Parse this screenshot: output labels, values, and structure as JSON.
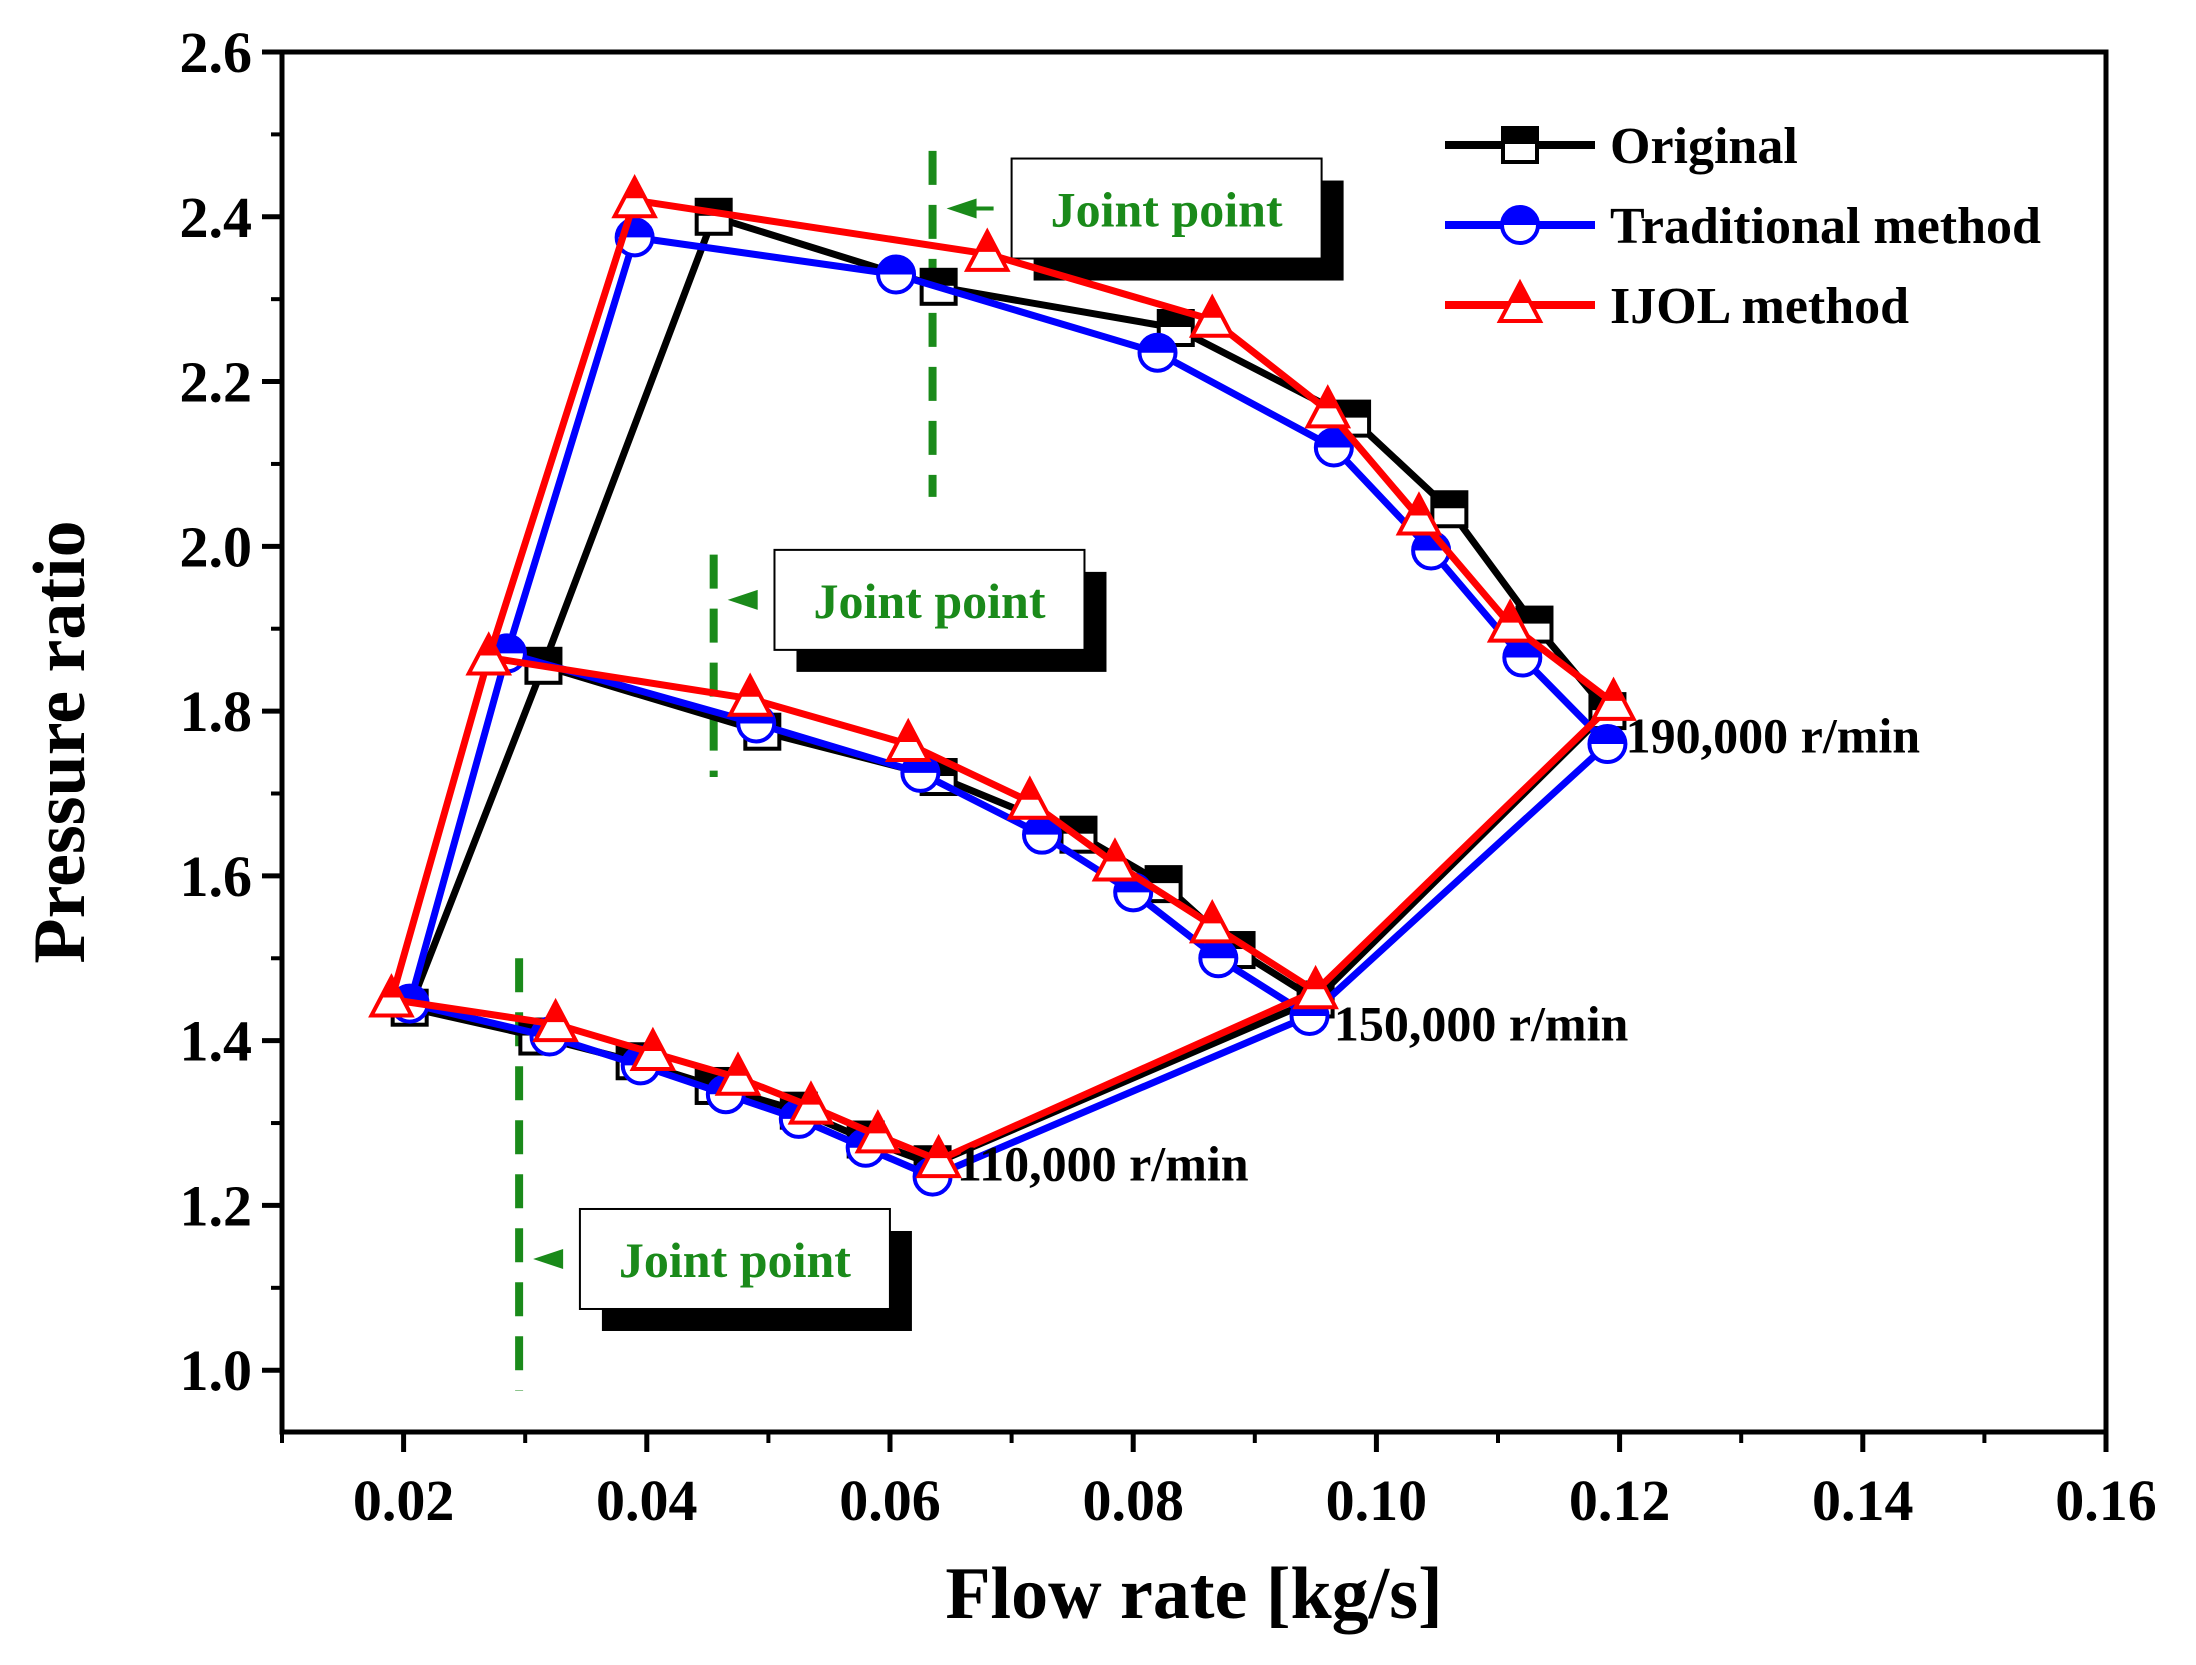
{
  "chart_data": {
    "type": "line",
    "title": "",
    "xlabel": "Flow rate [kg/s]",
    "ylabel": "Pressure ratio",
    "xlim": [
      0.01,
      0.16
    ],
    "ylim": [
      0.925,
      2.6
    ],
    "xticks": [
      0.02,
      0.04,
      0.06,
      0.08,
      0.1,
      0.12,
      0.14,
      0.16
    ],
    "xtick_labels": [
      "0.02",
      "0.04",
      "0.06",
      "0.08",
      "0.10",
      "0.12",
      "0.14",
      "0.16"
    ],
    "yticks": [
      1.0,
      1.2,
      1.4,
      1.6,
      1.8,
      2.0,
      2.2,
      2.4,
      2.6
    ],
    "ytick_labels": [
      "1.0",
      "1.2",
      "1.4",
      "1.6",
      "1.8",
      "2.0",
      "2.2",
      "2.4",
      "2.6"
    ],
    "grid": false,
    "legend_position": "top-right",
    "series": [
      {
        "name": "Original",
        "color": "#000000",
        "marker": "square",
        "points": [
          [
            0.0205,
            1.44
          ],
          [
            0.031,
            1.405
          ],
          [
            0.039,
            1.375
          ],
          [
            0.0455,
            1.345
          ],
          [
            0.0525,
            1.315
          ],
          [
            0.058,
            1.28
          ],
          [
            0.0635,
            1.25
          ],
          [
            0.095,
            1.45
          ],
          [
            0.119,
            1.8
          ],
          [
            0.113,
            1.905
          ],
          [
            0.106,
            2.045
          ],
          [
            0.098,
            2.155
          ],
          [
            0.0835,
            2.265
          ],
          [
            0.064,
            2.315
          ],
          [
            0.0455,
            2.4
          ],
          [
            0.0315,
            1.855
          ],
          [
            0.0205,
            1.44
          ]
        ],
        "extra_points": [
          [
            0.0315,
            1.855
          ],
          [
            0.0495,
            1.775
          ],
          [
            0.064,
            1.72
          ],
          [
            0.0755,
            1.65
          ],
          [
            0.0825,
            1.59
          ],
          [
            0.0885,
            1.51
          ],
          [
            0.095,
            1.45
          ]
        ]
      },
      {
        "name": "Traditional method",
        "color": "#0000ff",
        "marker": "circle",
        "points": [
          [
            0.0205,
            1.445
          ],
          [
            0.032,
            1.405
          ],
          [
            0.0395,
            1.37
          ],
          [
            0.0465,
            1.335
          ],
          [
            0.0525,
            1.305
          ],
          [
            0.058,
            1.27
          ],
          [
            0.0635,
            1.235
          ],
          [
            0.0945,
            1.43
          ],
          [
            0.119,
            1.76
          ],
          [
            0.112,
            1.865
          ],
          [
            0.1045,
            1.995
          ],
          [
            0.0965,
            2.12
          ],
          [
            0.082,
            2.235
          ],
          [
            0.0605,
            2.33
          ],
          [
            0.039,
            2.375
          ],
          [
            0.0285,
            1.87
          ],
          [
            0.0205,
            1.445
          ]
        ],
        "extra_points": [
          [
            0.0285,
            1.87
          ],
          [
            0.049,
            1.785
          ],
          [
            0.0625,
            1.725
          ],
          [
            0.0725,
            1.65
          ],
          [
            0.08,
            1.58
          ],
          [
            0.087,
            1.5
          ],
          [
            0.0945,
            1.43
          ]
        ]
      },
      {
        "name": "IJOL method",
        "color": "#ff0000",
        "marker": "triangle",
        "points": [
          [
            0.019,
            1.45
          ],
          [
            0.0325,
            1.42
          ],
          [
            0.0405,
            1.385
          ],
          [
            0.0475,
            1.355
          ],
          [
            0.0535,
            1.32
          ],
          [
            0.059,
            1.285
          ],
          [
            0.064,
            1.255
          ],
          [
            0.095,
            1.46
          ],
          [
            0.1195,
            1.81
          ],
          [
            0.111,
            1.905
          ],
          [
            0.1035,
            2.035
          ],
          [
            0.096,
            2.165
          ],
          [
            0.0865,
            2.275
          ],
          [
            0.068,
            2.355
          ],
          [
            0.039,
            2.42
          ],
          [
            0.027,
            1.865
          ],
          [
            0.019,
            1.45
          ]
        ],
        "extra_points": [
          [
            0.027,
            1.865
          ],
          [
            0.0485,
            1.815
          ],
          [
            0.0615,
            1.76
          ],
          [
            0.0715,
            1.69
          ],
          [
            0.0785,
            1.615
          ],
          [
            0.0865,
            1.54
          ],
          [
            0.095,
            1.46
          ]
        ]
      }
    ],
    "speed_labels": [
      {
        "text": "190,000 r/min",
        "x": 0.1205,
        "y": 1.75
      },
      {
        "text": "150,000 r/min",
        "x": 0.0965,
        "y": 1.4
      },
      {
        "text": "110,000 r/min",
        "x": 0.0655,
        "y": 1.23
      }
    ],
    "joint_points": [
      {
        "label": "Joint point",
        "x": 0.0635,
        "y_from": 2.06,
        "y_to": 2.48,
        "arrow_y": 2.41,
        "box_x": 0.07,
        "box_y": 2.41
      },
      {
        "label": "Joint point",
        "x": 0.0455,
        "y_from": 1.72,
        "y_to": 1.99,
        "arrow_y": 1.935,
        "box_x": 0.0505,
        "box_y": 1.935
      },
      {
        "label": "Joint point",
        "x": 0.0295,
        "y_from": 0.975,
        "y_to": 1.5,
        "arrow_y": 1.135,
        "box_x": 0.0345,
        "box_y": 1.135
      }
    ]
  }
}
